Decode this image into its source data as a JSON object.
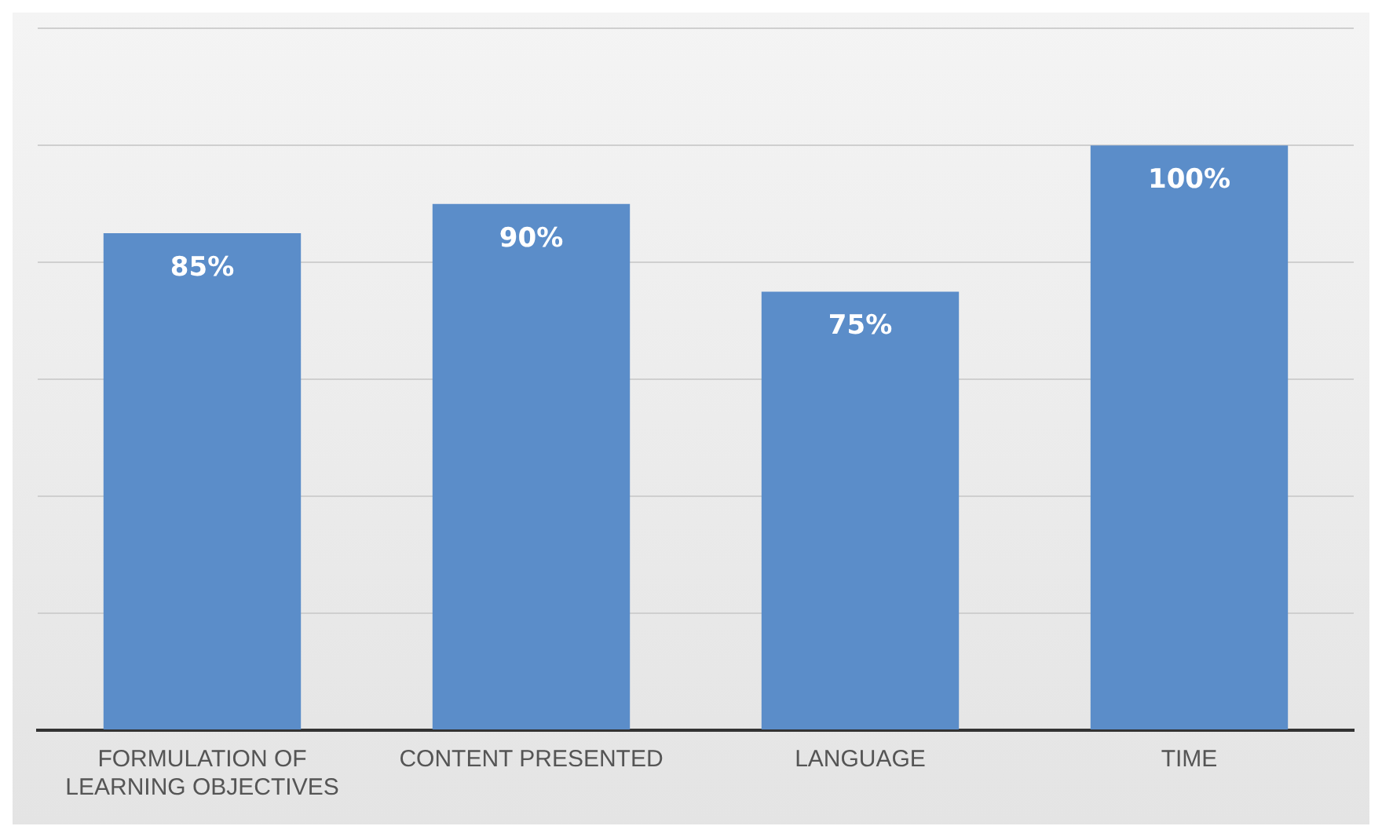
{
  "chart_data": {
    "type": "bar",
    "categories": [
      "FORMULATION OF LEARNING OBJECTIVES",
      "CONTENT PRESENTED",
      "LANGUAGE",
      "TIME"
    ],
    "values": [
      85,
      90,
      75,
      100
    ],
    "color": "#5b8dc9",
    "value_labels": [
      "85%",
      "90%",
      "75%",
      "100%"
    ],
    "ylim": [
      0,
      120
    ],
    "yticks": [
      {
        "value": 0,
        "label": null
      },
      {
        "value": 20,
        "label": null
      },
      {
        "value": 40,
        "label": null
      },
      {
        "value": 60,
        "label": null
      },
      {
        "value": 80,
        "label": null
      },
      {
        "value": 100,
        "label": null
      },
      {
        "value": 120,
        "label": null
      }
    ],
    "grid": "y",
    "legend": false
  }
}
